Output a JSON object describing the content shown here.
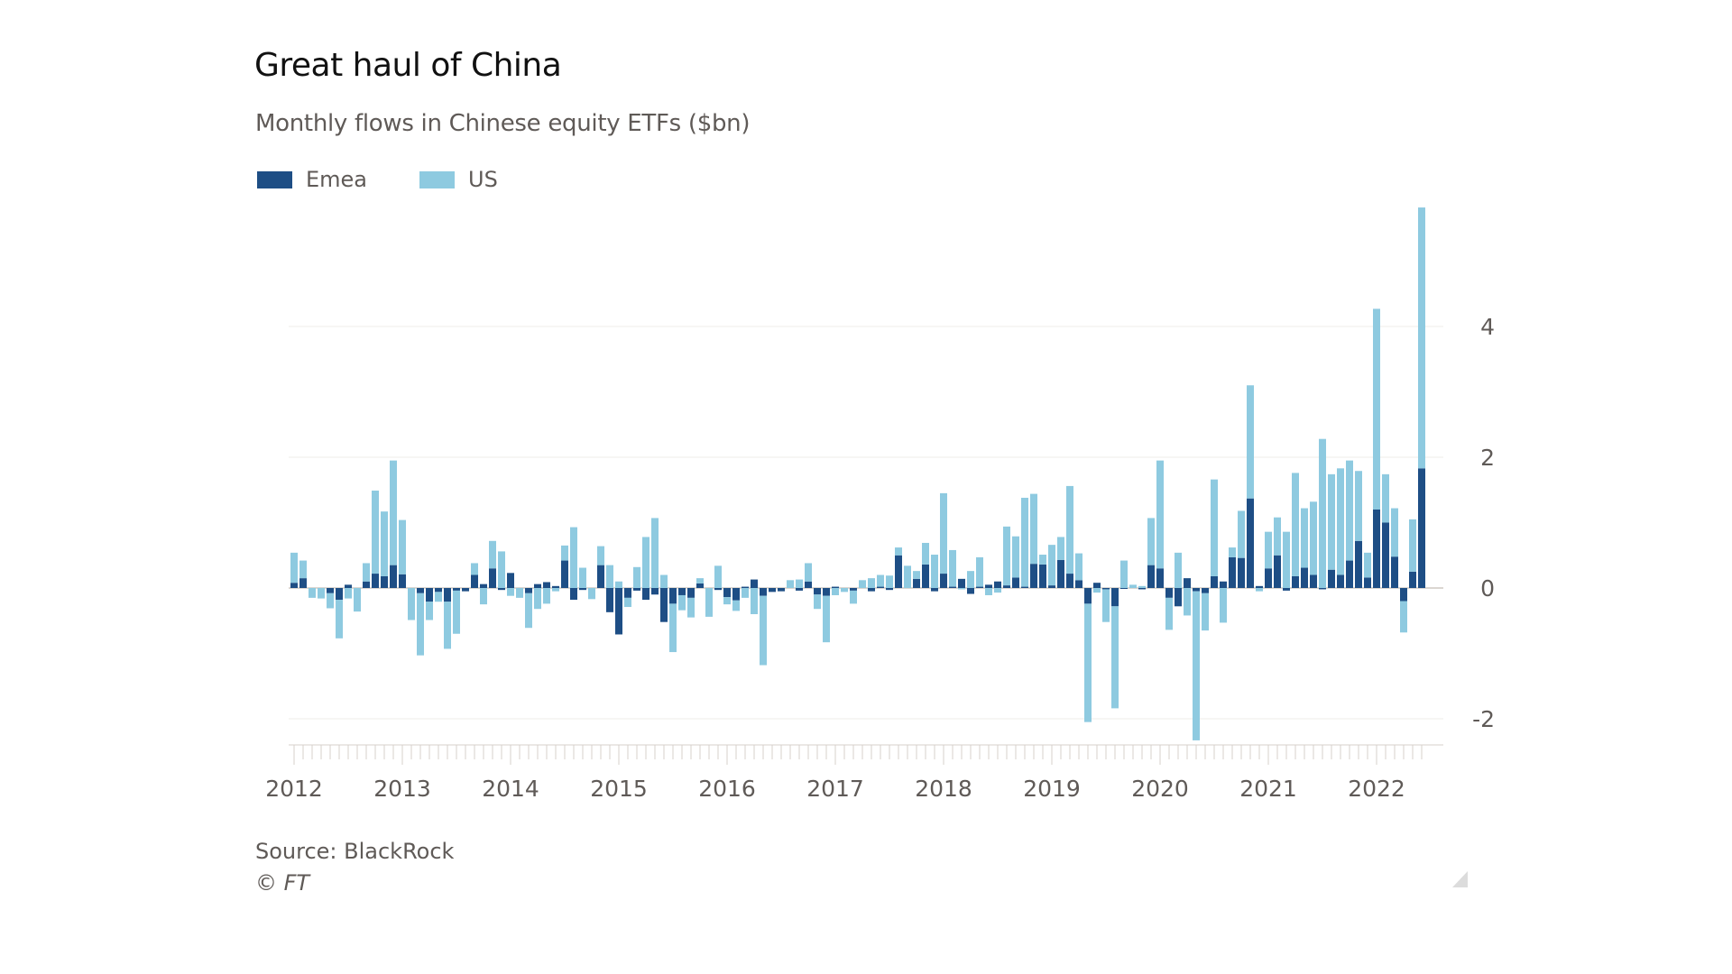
{
  "colors": {
    "emea": "#1e4e85",
    "us": "#8ecae0",
    "grid": "#efece9",
    "axis": "#d7d0cb",
    "text": "#5f5a57"
  },
  "chart_data": {
    "type": "bar",
    "stacked": true,
    "title": "Great haul of China",
    "subtitle": "Monthly flows in Chinese equity ETFs ($bn)",
    "xlabel": "",
    "ylabel": "",
    "ylim": [
      -2.35,
      5.9
    ],
    "yticks": [
      -2,
      0,
      2,
      4
    ],
    "ytick_labels": [
      "-2",
      "0",
      "2",
      "4"
    ],
    "y_axis_side": "right",
    "grid": true,
    "legend_position": "top-left",
    "x_start": "2012-01",
    "x_end": "2022-06",
    "frequency": "monthly",
    "xtick_labels": [
      "2012",
      "2013",
      "2014",
      "2015",
      "2016",
      "2017",
      "2018",
      "2019",
      "2020",
      "2021",
      "2022"
    ],
    "series": [
      {
        "name": "Emea",
        "values": [
          0.08,
          0.15,
          0.0,
          0.0,
          -0.08,
          -0.18,
          0.05,
          0.0,
          0.1,
          0.22,
          0.18,
          0.35,
          0.21,
          0.0,
          -0.08,
          -0.21,
          -0.06,
          -0.21,
          -0.04,
          -0.05,
          0.2,
          0.06,
          0.3,
          -0.03,
          0.23,
          0.0,
          -0.08,
          0.06,
          0.09,
          0.03,
          0.42,
          -0.18,
          -0.03,
          0.0,
          0.35,
          -0.37,
          -0.71,
          -0.15,
          -0.04,
          -0.18,
          -0.1,
          -0.52,
          -0.24,
          -0.11,
          -0.15,
          0.07,
          0.0,
          -0.03,
          -0.14,
          -0.19,
          0.02,
          0.13,
          -0.12,
          -0.06,
          -0.05,
          0.0,
          -0.04,
          0.1,
          -0.1,
          -0.12,
          0.02,
          0.0,
          -0.04,
          0.0,
          -0.05,
          0.02,
          -0.03,
          0.5,
          0.0,
          0.14,
          0.36,
          -0.05,
          0.22,
          0.02,
          0.14,
          -0.09,
          0.02,
          0.05,
          0.1,
          0.04,
          0.16,
          0.02,
          0.37,
          0.36,
          0.04,
          0.43,
          0.22,
          0.12,
          -0.24,
          0.08,
          -0.02,
          -0.28,
          -0.01,
          0.0,
          -0.02,
          0.35,
          0.3,
          -0.15,
          -0.28,
          0.15,
          -0.05,
          -0.08,
          0.18,
          0.1,
          0.47,
          0.46,
          1.37,
          0.03,
          0.3,
          0.5,
          -0.04,
          0.18,
          0.31,
          0.2,
          -0.02,
          0.28,
          0.2,
          0.42,
          0.72,
          0.16,
          1.2,
          1.0,
          0.48,
          -0.2,
          0.25,
          1.83
        ]
      },
      {
        "name": "US",
        "values": [
          0.46,
          0.27,
          -0.15,
          -0.16,
          -0.23,
          -0.59,
          -0.16,
          -0.36,
          0.28,
          1.27,
          0.99,
          1.6,
          0.83,
          -0.49,
          -0.95,
          -0.28,
          -0.15,
          -0.72,
          -0.66,
          0.0,
          0.18,
          -0.25,
          0.42,
          0.56,
          -0.12,
          -0.15,
          -0.53,
          -0.32,
          -0.24,
          -0.05,
          0.23,
          0.93,
          0.31,
          -0.17,
          0.29,
          0.35,
          0.1,
          -0.14,
          0.32,
          0.78,
          1.07,
          0.2,
          -0.74,
          -0.23,
          -0.3,
          0.08,
          -0.44,
          0.34,
          -0.11,
          -0.16,
          -0.15,
          -0.4,
          -1.06,
          0.0,
          0.0,
          0.12,
          0.13,
          0.28,
          -0.22,
          -0.71,
          -0.11,
          -0.06,
          -0.2,
          0.12,
          0.15,
          0.18,
          0.19,
          0.12,
          0.34,
          0.12,
          0.33,
          0.51,
          1.23,
          0.56,
          -0.02,
          0.26,
          0.45,
          -0.11,
          -0.07,
          0.9,
          0.63,
          1.36,
          1.07,
          0.15,
          0.62,
          0.35,
          1.34,
          0.41,
          -1.81,
          -0.07,
          -0.5,
          -1.56,
          0.42,
          0.05,
          0.03,
          0.72,
          1.65,
          -0.49,
          0.54,
          -0.42,
          -2.28,
          -0.57,
          1.48,
          -0.53,
          0.15,
          0.72,
          1.73,
          -0.05,
          0.56,
          0.58,
          0.86,
          1.58,
          0.91,
          1.12,
          2.28,
          1.46,
          1.63,
          1.53,
          1.07,
          0.38,
          3.07,
          0.74,
          0.74,
          -0.48,
          0.8,
          3.99
        ]
      }
    ]
  },
  "legend": [
    {
      "label": "Emea",
      "key": "emea"
    },
    {
      "label": "US",
      "key": "us"
    }
  ],
  "footer": {
    "source": "Source: BlackRock",
    "copyright": "© FT"
  }
}
